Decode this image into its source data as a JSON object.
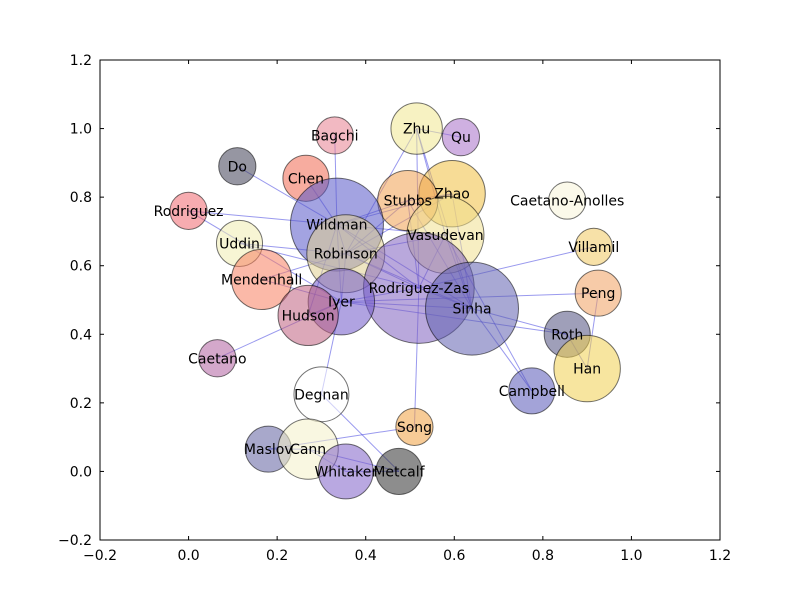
{
  "chart_data": {
    "type": "network",
    "xlim": [
      -0.2,
      1.2
    ],
    "ylim": [
      -0.2,
      1.2
    ],
    "x_ticks": [
      "−0.2",
      "0.0",
      "0.2",
      "0.4",
      "0.6",
      "0.8",
      "1.0",
      "1.2"
    ],
    "y_ticks": [
      "−0.2",
      "0.0",
      "0.2",
      "0.4",
      "0.6",
      "0.8",
      "1.0",
      "1.2"
    ],
    "grid": false,
    "edge_color": "#3333dd",
    "nodes": [
      {
        "id": "Bagchi",
        "x": 0.33,
        "y": 0.98,
        "size": 0.042,
        "color": "#e88090"
      },
      {
        "id": "Zhu",
        "x": 0.515,
        "y": 1.0,
        "size": 0.058,
        "color": "#f0e890"
      },
      {
        "id": "Qu",
        "x": 0.615,
        "y": 0.975,
        "size": 0.042,
        "color": "#a870c8"
      },
      {
        "id": "Do",
        "x": 0.11,
        "y": 0.89,
        "size": 0.042,
        "color": "#404055"
      },
      {
        "id": "Chen",
        "x": 0.265,
        "y": 0.855,
        "size": 0.052,
        "color": "#f06850"
      },
      {
        "id": "Zhao",
        "x": 0.595,
        "y": 0.81,
        "size": 0.075,
        "color": "#f0c040"
      },
      {
        "id": "Stubbs",
        "x": 0.495,
        "y": 0.79,
        "size": 0.068,
        "color": "#f0a050"
      },
      {
        "id": "Caetano-Anolles",
        "x": 0.855,
        "y": 0.79,
        "size": 0.042,
        "color": "#f8f4d8"
      },
      {
        "id": "Rodriguez",
        "x": 0.0,
        "y": 0.76,
        "size": 0.042,
        "color": "#f06870"
      },
      {
        "id": "Wildman",
        "x": 0.335,
        "y": 0.72,
        "size": 0.105,
        "color": "#5858c8"
      },
      {
        "id": "Vasudevan",
        "x": 0.58,
        "y": 0.69,
        "size": 0.087,
        "color": "#f0e090"
      },
      {
        "id": "Uddin",
        "x": 0.115,
        "y": 0.665,
        "size": 0.052,
        "color": "#f0ecb0"
      },
      {
        "id": "Villamil",
        "x": 0.915,
        "y": 0.655,
        "size": 0.042,
        "color": "#f0c860"
      },
      {
        "id": "Robinson",
        "x": 0.355,
        "y": 0.635,
        "size": 0.088,
        "color": "#e0d090"
      },
      {
        "id": "Mendenhall",
        "x": 0.165,
        "y": 0.56,
        "size": 0.068,
        "color": "#f88060"
      },
      {
        "id": "Rodriguez-Zas",
        "x": 0.52,
        "y": 0.535,
        "size": 0.125,
        "color": "#8060c0"
      },
      {
        "id": "Peng",
        "x": 0.925,
        "y": 0.52,
        "size": 0.052,
        "color": "#f0a060"
      },
      {
        "id": "Iyer",
        "x": 0.345,
        "y": 0.495,
        "size": 0.075,
        "color": "#7058c8"
      },
      {
        "id": "Sinha",
        "x": 0.64,
        "y": 0.475,
        "size": 0.105,
        "color": "#6060b0"
      },
      {
        "id": "Hudson",
        "x": 0.27,
        "y": 0.455,
        "size": 0.068,
        "color": "#c06080"
      },
      {
        "id": "Roth",
        "x": 0.855,
        "y": 0.4,
        "size": 0.052,
        "color": "#505080"
      },
      {
        "id": "Han",
        "x": 0.9,
        "y": 0.3,
        "size": 0.075,
        "color": "#f0d050"
      },
      {
        "id": "Caetano",
        "x": 0.065,
        "y": 0.33,
        "size": 0.042,
        "color": "#b060a0"
      },
      {
        "id": "Campbell",
        "x": 0.775,
        "y": 0.235,
        "size": 0.052,
        "color": "#5858b8"
      },
      {
        "id": "Degnan",
        "x": 0.3,
        "y": 0.225,
        "size": 0.062,
        "color": "#ffffff"
      },
      {
        "id": "Song",
        "x": 0.51,
        "y": 0.13,
        "size": 0.042,
        "color": "#f0a040"
      },
      {
        "id": "Maslov",
        "x": 0.18,
        "y": 0.065,
        "size": 0.052,
        "color": "#6060a0"
      },
      {
        "id": "Cann",
        "x": 0.27,
        "y": 0.065,
        "size": 0.068,
        "color": "#f4f0c8"
      },
      {
        "id": "Whitaker",
        "x": 0.355,
        "y": 0.0,
        "size": 0.062,
        "color": "#8060c8"
      },
      {
        "id": "Metcalf",
        "x": 0.475,
        "y": 0.0,
        "size": 0.052,
        "color": "#303030"
      }
    ],
    "edges": [
      [
        "Do",
        "Wildman"
      ],
      [
        "Chen",
        "Wildman"
      ],
      [
        "Bagchi",
        "Wildman"
      ],
      [
        "Zhu",
        "Qu"
      ],
      [
        "Zhu",
        "Vasudevan"
      ],
      [
        "Zhu",
        "Robinson"
      ],
      [
        "Zhu",
        "Sinha"
      ],
      [
        "Zhu",
        "Rodriguez-Zas"
      ],
      [
        "Zhao",
        "Wildman"
      ],
      [
        "Zhao",
        "Stubbs"
      ],
      [
        "Zhao",
        "Sinha"
      ],
      [
        "Zhao",
        "Robinson"
      ],
      [
        "Stubbs",
        "Wildman"
      ],
      [
        "Stubbs",
        "Robinson"
      ],
      [
        "Stubbs",
        "Rodriguez-Zas"
      ],
      [
        "Stubbs",
        "Sinha"
      ],
      [
        "Rodriguez",
        "Wildman"
      ],
      [
        "Rodriguez",
        "Iyer"
      ],
      [
        "Uddin",
        "Robinson"
      ],
      [
        "Uddin",
        "Rodriguez-Zas"
      ],
      [
        "Wildman",
        "Robinson"
      ],
      [
        "Wildman",
        "Vasudevan"
      ],
      [
        "Wildman",
        "Rodriguez-Zas"
      ],
      [
        "Wildman",
        "Sinha"
      ],
      [
        "Wildman",
        "Iyer"
      ],
      [
        "Wildman",
        "Hudson"
      ],
      [
        "Mendenhall",
        "Iyer"
      ],
      [
        "Mendenhall",
        "Robinson"
      ],
      [
        "Villamil",
        "Rodriguez-Zas"
      ],
      [
        "Vasudevan",
        "Sinha"
      ],
      [
        "Vasudevan",
        "Robinson"
      ],
      [
        "Vasudevan",
        "Campbell"
      ],
      [
        "Vasudevan",
        "Rodriguez-Zas"
      ],
      [
        "Robinson",
        "Rodriguez-Zas"
      ],
      [
        "Robinson",
        "Sinha"
      ],
      [
        "Robinson",
        "Iyer"
      ],
      [
        "Rodriguez-Zas",
        "Sinha"
      ],
      [
        "Rodriguez-Zas",
        "Iyer"
      ],
      [
        "Rodriguez-Zas",
        "Song"
      ],
      [
        "Iyer",
        "Peng"
      ],
      [
        "Iyer",
        "Sinha"
      ],
      [
        "Iyer",
        "Roth"
      ],
      [
        "Iyer",
        "Hudson"
      ],
      [
        "Caetano",
        "Iyer"
      ],
      [
        "Sinha",
        "Roth"
      ],
      [
        "Sinha",
        "Campbell"
      ],
      [
        "Peng",
        "Han"
      ],
      [
        "Roth",
        "Han"
      ],
      [
        "Degnan",
        "Iyer"
      ],
      [
        "Degnan",
        "Metcalf"
      ],
      [
        "Song",
        "Maslov"
      ],
      [
        "Maslov",
        "Cann"
      ],
      [
        "Cann",
        "Whitaker"
      ],
      [
        "Cann",
        "Metcalf"
      ],
      [
        "Whitaker",
        "Metcalf"
      ]
    ]
  }
}
